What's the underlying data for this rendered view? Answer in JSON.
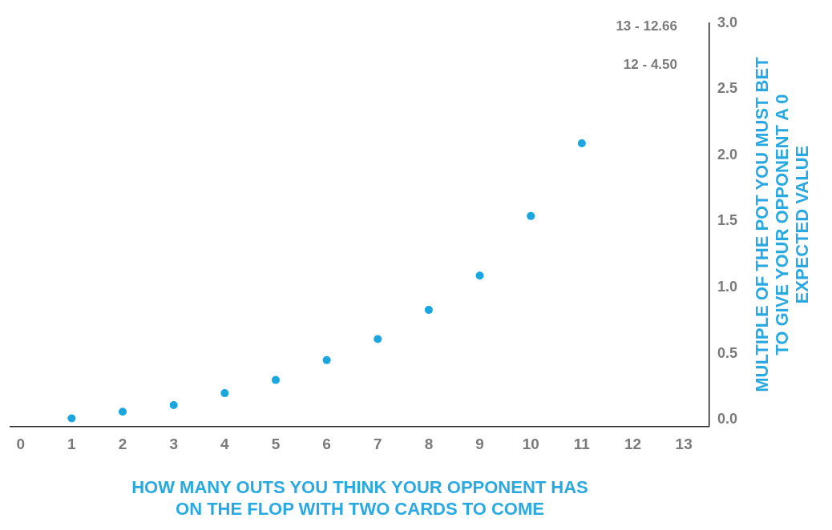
{
  "chart_data": {
    "type": "scatter",
    "xlabel": "HOW MANY OUTS YOU THINK YOUR OPPONENT HAS ON THE FLOP WITH TWO CARDS TO COME",
    "ylabel": "MULTIPLE OF THE POT YOU MUST BET TO GIVE YOUR OPPONENT A 0 EXPECTED VALUE",
    "annotations": [
      "13 - 12.66",
      "12 - 4.50"
    ],
    "x": [
      1,
      2,
      3,
      4,
      5,
      6,
      7,
      8,
      9,
      10,
      11
    ],
    "series": [
      {
        "color": "#1aa7e0",
        "values": [
          0.01,
          0.06,
          0.11,
          0.2,
          0.3,
          0.45,
          0.61,
          0.83,
          1.09,
          1.54,
          2.09
        ]
      }
    ],
    "xlim": [
      -0.2,
      13.5
    ],
    "xticks": [
      0,
      1,
      2,
      3,
      4,
      5,
      6,
      7,
      8,
      9,
      10,
      11,
      12,
      13
    ],
    "ylim": [
      -0.05,
      3
    ],
    "yticks": [
      {
        "value": 0,
        "label": "0.0"
      },
      {
        "value": 0.5,
        "label": "0.5"
      },
      {
        "value": 1,
        "label": "1.0"
      },
      {
        "value": 1.5,
        "label": "1.5"
      },
      {
        "value": 2,
        "label": "2.0"
      },
      {
        "value": 2.5,
        "label": "2.5"
      },
      {
        "value": 3,
        "label": "3.0"
      }
    ],
    "grid": false,
    "legend": false,
    "marker": "circle"
  }
}
